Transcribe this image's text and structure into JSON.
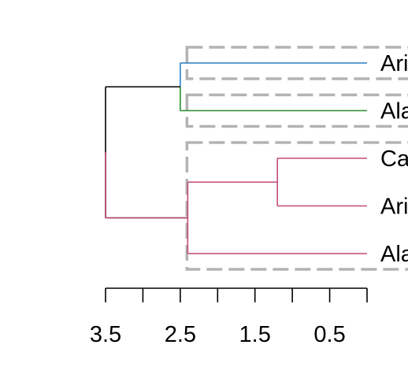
{
  "chart_data": {
    "type": "dendrogram",
    "orientation": "horizontal",
    "xlim": [
      3.5,
      0
    ],
    "ticks": [
      3.5,
      3.0,
      2.5,
      2.0,
      1.5,
      1.0,
      0.5,
      0.0
    ],
    "tick_labels": [
      {
        "value": 3.5,
        "text": "3.5"
      },
      {
        "value": 2.5,
        "text": "2.5"
      },
      {
        "value": 1.5,
        "text": "1.5"
      },
      {
        "value": 0.5,
        "text": "0.5"
      }
    ],
    "leaves": [
      "Ari",
      "Ala",
      "Ca",
      "Ari",
      "Ala"
    ],
    "leaf_colors": [
      "#2a7fc6",
      "#2a8c2a",
      "#c44a7a",
      "#c44a7a",
      "#c44a7a"
    ],
    "merges": [
      {
        "left": [
          2
        ],
        "right": [
          3
        ],
        "height": 1.2,
        "color": "#c44a7a"
      },
      {
        "left": [
          2,
          3
        ],
        "right": [
          4
        ],
        "height": 2.4,
        "color": "#c44a7a"
      },
      {
        "left": [
          0
        ],
        "right": [
          1
        ],
        "height": 2.5,
        "color": "#2a8c2a"
      },
      {
        "left": [
          0,
          1
        ],
        "right": [
          2,
          3,
          4
        ],
        "height": 3.5,
        "color": "#000000"
      }
    ],
    "cluster_boxes": [
      {
        "leaves": [
          0
        ],
        "color": "#b3b3b3"
      },
      {
        "leaves": [
          1
        ],
        "color": "#b3b3b3"
      },
      {
        "leaves": [
          2,
          3,
          4
        ],
        "color": "#b3b3b3"
      }
    ],
    "blue_green_split_colors": {
      "top": "#2a7fc6",
      "bottom": "#2a8c2a"
    },
    "grid": false
  }
}
